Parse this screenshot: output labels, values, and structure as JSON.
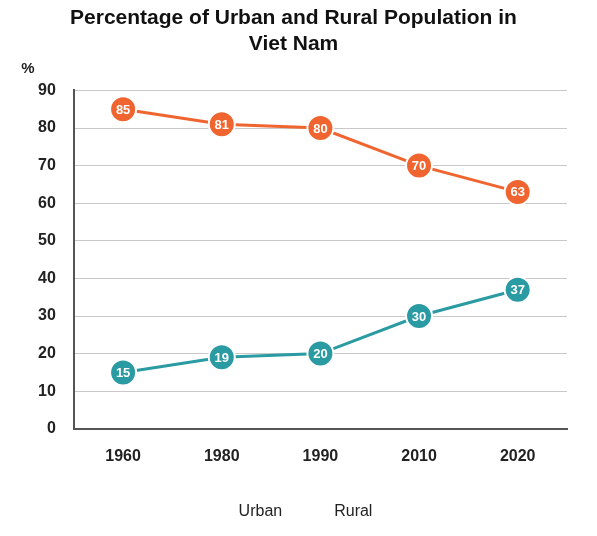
{
  "chart_data": {
    "type": "line",
    "title": "Percentage of Urban and Rural Population in Viet Nam",
    "y_label": "%",
    "categories": [
      "1960",
      "1980",
      "1990",
      "2010",
      "2020"
    ],
    "series": [
      {
        "name": "Urban",
        "color": "#f0652f",
        "values": [
          85,
          81,
          80,
          70,
          63
        ],
        "marker": "circle"
      },
      {
        "name": "Rural",
        "color": "#2a9aa3",
        "values": [
          15,
          19,
          20,
          30,
          37
        ],
        "marker": "circle"
      }
    ],
    "ylim": [
      0,
      90
    ],
    "yticks": [
      0,
      10,
      20,
      30,
      40,
      50,
      60,
      70,
      80,
      90
    ],
    "grid": true,
    "legend": "bottom",
    "data_labels": true
  }
}
